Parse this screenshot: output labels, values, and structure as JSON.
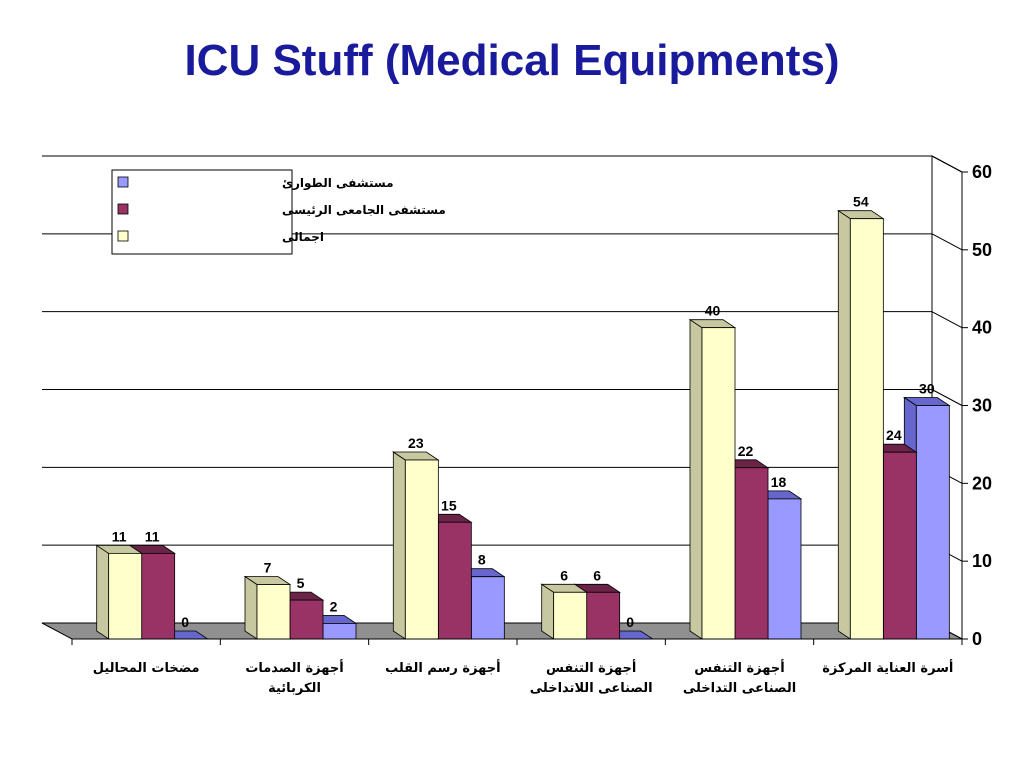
{
  "title": "ICU Stuff (Medical Equipments)",
  "colors": {
    "title": "#1a1a9c",
    "series_fill": [
      "#9999ff",
      "#993366",
      "#ffffcc"
    ],
    "series_side": [
      "#6666cc",
      "#6b2447",
      "#c8c8a0"
    ],
    "floor": "#909090",
    "back_wall": "#ffffff"
  },
  "chart_data": {
    "type": "bar",
    "title": "",
    "xlabel": "",
    "ylabel": "",
    "ylim": [
      0,
      60
    ],
    "yticks": [
      "0",
      "10",
      "20",
      "30",
      "40",
      "50",
      "60"
    ],
    "grid": true,
    "legend_position": "top-left",
    "categories": [
      [
        "مضخات المحاليل"
      ],
      [
        "أجهزة الصدمات",
        "الكربائية"
      ],
      [
        "أجهزة رسم القلب"
      ],
      [
        "أجهزة التنفس",
        "الصناعى اللاتداخلى"
      ],
      [
        "أجهزة التنفس",
        "الصناعى التداخلى"
      ],
      [
        "أسرة العناية المركزة"
      ]
    ],
    "series": [
      {
        "name": "مستشفى الطوارئ",
        "values": [
          0,
          2,
          8,
          0,
          18,
          30
        ]
      },
      {
        "name": "مستشفى الجامعى الرئيسى",
        "values": [
          11,
          5,
          15,
          6,
          22,
          24
        ]
      },
      {
        "name": "اجمالى",
        "values": [
          11,
          7,
          23,
          6,
          40,
          54
        ]
      }
    ]
  }
}
